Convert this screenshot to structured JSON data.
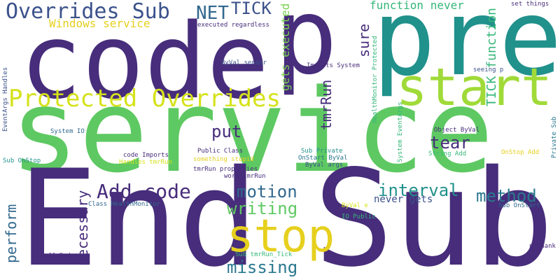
{
  "words": [
    {
      "text": "service",
      "color": "#5ec962"
    },
    {
      "text": "End",
      "color": "#472d7b"
    },
    {
      "text": "Sub",
      "color": "#472d7b"
    },
    {
      "text": "code",
      "color": "#472d7b"
    },
    {
      "text": "pre",
      "color": "#21918c"
    },
    {
      "text": "p",
      "color": "#472d7b"
    },
    {
      "text": "start",
      "color": "#a0da39"
    },
    {
      "text": "stop",
      "color": "#e6d01d"
    },
    {
      "text": "Protected Overrides",
      "color": "#d5e21a"
    },
    {
      "text": "Overrides Sub",
      "color": "#3b528b"
    },
    {
      "text": "Add code",
      "color": "#472d7b"
    },
    {
      "text": "method",
      "color": "#2a788e"
    },
    {
      "text": "interval",
      "color": "#21918c"
    },
    {
      "text": "motion",
      "color": "#31688e"
    },
    {
      "text": "writing",
      "color": "#5ec962"
    },
    {
      "text": "missing",
      "color": "#2a788e"
    },
    {
      "text": "tear",
      "color": "#472d7b"
    },
    {
      "text": "put",
      "color": "#472d7b"
    },
    {
      "text": "NET",
      "color": "#31688e"
    },
    {
      "text": "TICK",
      "color": "#3b528b"
    },
    {
      "text": "sure",
      "color": "#472d7b"
    },
    {
      "text": "tmrRun",
      "color": "#472d7b"
    },
    {
      "text": "gets executed",
      "color": "#7ad151"
    },
    {
      "text": "function never",
      "color": "#35b779"
    },
    {
      "text": "TICK function",
      "color": "#35b779"
    },
    {
      "text": "Windows service",
      "color": "#e6d01d"
    },
    {
      "text": "never gets",
      "color": "#3b528b"
    },
    {
      "text": "necessary",
      "color": "#472d7b"
    },
    {
      "text": "perform",
      "color": "#31688e"
    },
    {
      "text": "executed regardless",
      "color": "#472d7b"
    },
    {
      "text": "ByVal sender",
      "color": "#3b528b"
    },
    {
      "text": "Imports System",
      "color": "#472d7b"
    },
    {
      "text": "HealthMonitor Protected",
      "color": "#35b779"
    },
    {
      "text": "set things",
      "color": "#472d7b"
    },
    {
      "text": "seeing p",
      "color": "#3b528b"
    },
    {
      "text": "EventArgs Handles",
      "color": "#3b528b"
    },
    {
      "text": "System IO",
      "color": "#31688e"
    },
    {
      "text": "Sub OnStop",
      "color": "#21918c"
    },
    {
      "text": "Object ByVal",
      "color": "#472d7b"
    },
    {
      "text": "String Add",
      "color": "#35b779"
    },
    {
      "text": "OnStop Add",
      "color": "#e6d01d"
    },
    {
      "text": "Private Sub",
      "color": "#2a788e"
    },
    {
      "text": "System EventArgs",
      "color": "#35b779"
    },
    {
      "text": "Sub Private",
      "color": "#21918c"
    },
    {
      "text": "OnStart ByVal",
      "color": "#2a788e"
    },
    {
      "text": "ByVal args",
      "color": "#3b528b"
    },
    {
      "text": "code Imports",
      "color": "#472d7b"
    },
    {
      "text": "Handles tmrRun",
      "color": "#d5e21a"
    },
    {
      "text": "Public Class",
      "color": "#472d7b"
    },
    {
      "text": "something stupid",
      "color": "#e6d01d"
    },
    {
      "text": "tmrRun properties",
      "color": "#472d7b"
    },
    {
      "text": "work tmrRun",
      "color": "#472d7b"
    },
    {
      "text": "Class HealthMonitor",
      "color": "#31688e"
    },
    {
      "text": "ByVal e",
      "color": "#d5e21a"
    },
    {
      "text": "IO Public",
      "color": "#35b779"
    },
    {
      "text": "Sub OnStart",
      "color": "#31688e"
    },
    {
      "text": "tmrRun_Tick ByVal",
      "color": "#472d7b"
    },
    {
      "text": "Sub tmrRun_Tick",
      "color": "#35b779"
    },
    {
      "text": "stuff End",
      "color": "#472d7b"
    },
    {
      "text": "p Thank",
      "color": "#472d7b"
    }
  ]
}
